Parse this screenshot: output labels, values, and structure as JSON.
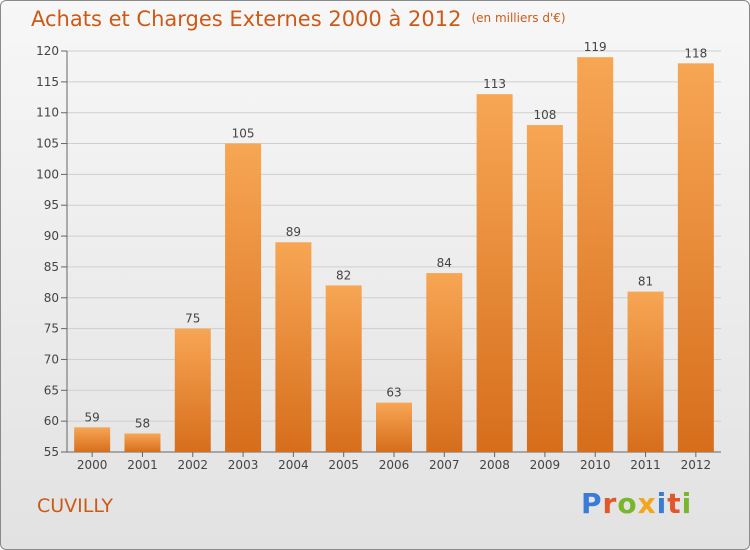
{
  "header": {
    "title": "Achats et Charges Externes 2000 à 2012",
    "unit": "(en milliers d'€)"
  },
  "footer": {
    "city": "CUVILLY",
    "brand": "Proxiti"
  },
  "colors": {
    "title": "#cc5a16",
    "bar_light": "#f7a654",
    "bar_dark": "#d66e1c",
    "brand_letters": [
      "#3a7bd5",
      "#e2562b",
      "#7ab62c",
      "#f2a61c",
      "#3a7bd5",
      "#e2562b",
      "#7ab62c"
    ]
  },
  "chart_data": {
    "type": "bar",
    "categories": [
      "2000",
      "2001",
      "2002",
      "2003",
      "2004",
      "2005",
      "2006",
      "2007",
      "2008",
      "2009",
      "2010",
      "2011",
      "2012"
    ],
    "values": [
      59,
      58,
      75,
      105,
      89,
      82,
      63,
      84,
      113,
      108,
      119,
      81,
      118
    ],
    "title": "Achats et Charges Externes 2000 à 2012",
    "ylim": [
      55,
      120
    ],
    "yticks": [
      55,
      60,
      65,
      70,
      75,
      80,
      85,
      90,
      95,
      100,
      105,
      110,
      115,
      120
    ],
    "grid": true,
    "data_labels": true
  }
}
